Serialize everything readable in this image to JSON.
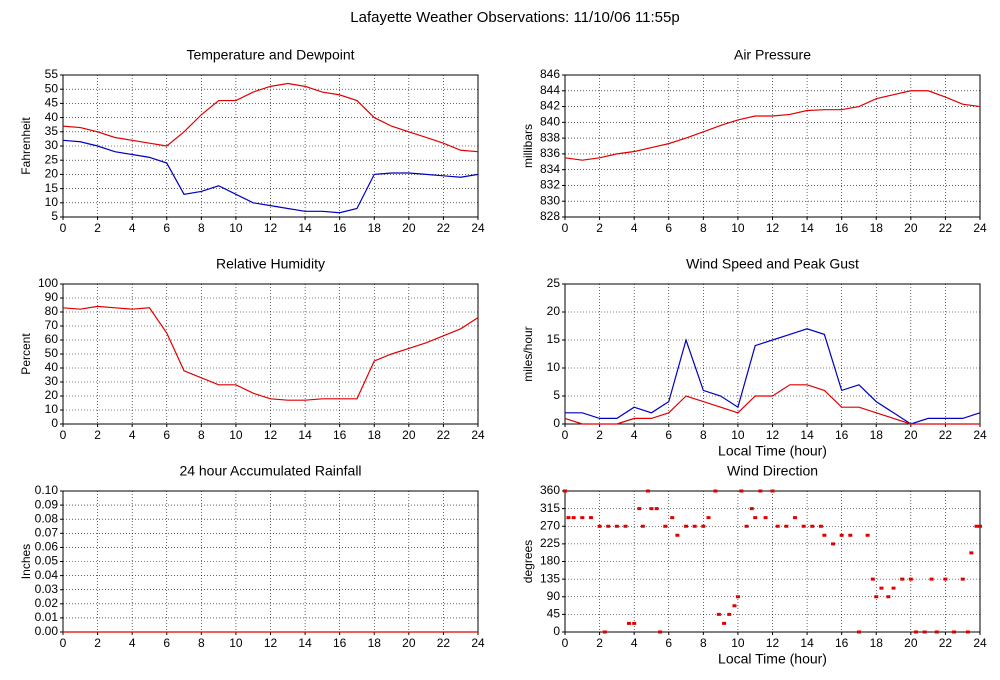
{
  "title": "Lafayette Weather Observations: 11/10/06 11:55p",
  "chart_data": [
    {
      "type": "line",
      "title": "Temperature and Dewpoint",
      "ylabel": "Fahrenheit",
      "x": [
        0,
        1,
        2,
        3,
        4,
        5,
        6,
        7,
        8,
        9,
        10,
        11,
        12,
        13,
        14,
        15,
        16,
        17,
        18,
        19,
        20,
        21,
        22,
        23,
        24
      ],
      "series": [
        {
          "color": "#e00000",
          "values": [
            37,
            36.5,
            35,
            33,
            32,
            31,
            30,
            35,
            41,
            46,
            46,
            49,
            51,
            52,
            51,
            49,
            48,
            46,
            40,
            37,
            35,
            33,
            31,
            28.5,
            28
          ]
        },
        {
          "color": "#0000c0",
          "values": [
            32,
            31.5,
            30,
            28,
            27,
            26,
            24,
            13,
            14,
            16,
            13,
            10,
            9,
            8,
            7,
            7,
            6.5,
            8,
            20,
            20.5,
            20.5,
            20,
            19.5,
            19,
            20
          ]
        }
      ],
      "xlim": [
        0,
        24
      ],
      "xticks": [
        0,
        2,
        4,
        6,
        8,
        10,
        12,
        14,
        16,
        18,
        20,
        22,
        24
      ],
      "ylim": [
        5,
        55
      ],
      "yticks": [
        5,
        10,
        15,
        20,
        25,
        30,
        35,
        40,
        45,
        50,
        55
      ],
      "grid": true
    },
    {
      "type": "line",
      "title": "Air Pressure",
      "ylabel": "millibars",
      "x": [
        0,
        1,
        2,
        3,
        4,
        5,
        6,
        7,
        8,
        9,
        10,
        11,
        12,
        13,
        14,
        15,
        16,
        17,
        18,
        19,
        20,
        21,
        22,
        23,
        24
      ],
      "series": [
        {
          "color": "#e00000",
          "values": [
            835.5,
            835.2,
            835.5,
            836,
            836.3,
            836.8,
            837.3,
            838,
            838.8,
            839.6,
            840.3,
            840.8,
            840.8,
            841,
            841.5,
            841.6,
            841.6,
            842,
            843,
            843.5,
            844,
            844,
            843.2,
            842.3,
            842
          ]
        }
      ],
      "xlim": [
        0,
        24
      ],
      "xticks": [
        0,
        2,
        4,
        6,
        8,
        10,
        12,
        14,
        16,
        18,
        20,
        22,
        24
      ],
      "ylim": [
        828,
        846
      ],
      "yticks": [
        828,
        830,
        832,
        834,
        836,
        838,
        840,
        842,
        844,
        846
      ],
      "grid": true
    },
    {
      "type": "line",
      "title": "Relative Humidity",
      "ylabel": "Percent",
      "x": [
        0,
        1,
        2,
        3,
        4,
        5,
        6,
        7,
        8,
        9,
        10,
        11,
        12,
        13,
        14,
        15,
        16,
        17,
        18,
        19,
        20,
        21,
        22,
        23,
        24
      ],
      "series": [
        {
          "color": "#e00000",
          "values": [
            83,
            82,
            84,
            83,
            82,
            83,
            65,
            38,
            33,
            28,
            28,
            22,
            18,
            17,
            17,
            18,
            18,
            18,
            45,
            50,
            54,
            58,
            63,
            68,
            76
          ]
        }
      ],
      "xlim": [
        0,
        24
      ],
      "xticks": [
        0,
        2,
        4,
        6,
        8,
        10,
        12,
        14,
        16,
        18,
        20,
        22,
        24
      ],
      "ylim": [
        0,
        100
      ],
      "yticks": [
        0,
        10,
        20,
        30,
        40,
        50,
        60,
        70,
        80,
        90,
        100
      ],
      "grid": true
    },
    {
      "type": "line",
      "title": "Wind Speed and Peak Gust",
      "ylabel": "miles/hour",
      "xlabel": "Local Time (hour)",
      "x": [
        0,
        1,
        2,
        3,
        4,
        5,
        6,
        7,
        8,
        9,
        10,
        11,
        12,
        13,
        14,
        15,
        16,
        17,
        18,
        19,
        20,
        21,
        22,
        23,
        24
      ],
      "series": [
        {
          "color": "#0000c0",
          "values": [
            2,
            2,
            1,
            1,
            3,
            2,
            4,
            15,
            6,
            5,
            3,
            14,
            15,
            16,
            17,
            16,
            6,
            7,
            4,
            2,
            0,
            1,
            1,
            1,
            2
          ]
        },
        {
          "color": "#e00000",
          "values": [
            1,
            0,
            0,
            0,
            1,
            1,
            2,
            5,
            4,
            3,
            2,
            5,
            5,
            7,
            7,
            6,
            3,
            3,
            2,
            1,
            0,
            0,
            0,
            0,
            0
          ]
        }
      ],
      "xlim": [
        0,
        24
      ],
      "xticks": [
        0,
        2,
        4,
        6,
        8,
        10,
        12,
        14,
        16,
        18,
        20,
        22,
        24
      ],
      "ylim": [
        0,
        25
      ],
      "yticks": [
        0,
        5,
        10,
        15,
        20,
        25
      ],
      "grid": true
    },
    {
      "type": "line",
      "title": "24 hour Accumulated Rainfall",
      "ylabel": "Inches",
      "x": [
        0,
        1,
        2,
        3,
        4,
        5,
        6,
        7,
        8,
        9,
        10,
        11,
        12,
        13,
        14,
        15,
        16,
        17,
        18,
        19,
        20,
        21,
        22,
        23,
        24
      ],
      "series": [
        {
          "color": "#e00000",
          "values": [
            0,
            0,
            0,
            0,
            0,
            0,
            0,
            0,
            0,
            0,
            0,
            0,
            0,
            0,
            0,
            0,
            0,
            0,
            0,
            0,
            0,
            0,
            0,
            0,
            0
          ]
        }
      ],
      "xlim": [
        0,
        24
      ],
      "xticks": [
        0,
        2,
        4,
        6,
        8,
        10,
        12,
        14,
        16,
        18,
        20,
        22,
        24
      ],
      "ylim": [
        0,
        0.1
      ],
      "yticks": [
        {
          "value": 0,
          "label": "0.00"
        },
        {
          "value": 0.01,
          "label": "0.01"
        },
        {
          "value": 0.02,
          "label": "0.02"
        },
        {
          "value": 0.03,
          "label": "0.03"
        },
        {
          "value": 0.04,
          "label": "0.04"
        },
        {
          "value": 0.05,
          "label": "0.05"
        },
        {
          "value": 0.06,
          "label": "0.06"
        },
        {
          "value": 0.07,
          "label": "0.07"
        },
        {
          "value": 0.08,
          "label": "0.08"
        },
        {
          "value": 0.09,
          "label": "0.09"
        },
        {
          "value": 0.1,
          "label": "0.10"
        }
      ],
      "grid": true
    },
    {
      "type": "scatter",
      "title": "Wind Direction",
      "ylabel": "degrees",
      "xlabel": "Local Time (hour)",
      "x": [
        0,
        0.2,
        0.5,
        1,
        1.5,
        2,
        2.5,
        3,
        3.5,
        2.3,
        3.7,
        4,
        4.3,
        4.5,
        4.8,
        5,
        5.3,
        5.5,
        5.8,
        6.2,
        6.5,
        7,
        7.5,
        8,
        8.3,
        8.7,
        8.9,
        9.2,
        9.5,
        9.8,
        10,
        10.2,
        10.5,
        10.8,
        11,
        11.3,
        11.6,
        12,
        12.3,
        12.8,
        13.3,
        13.8,
        14.3,
        14.8,
        15,
        15.5,
        16,
        16.5,
        17,
        17.5,
        17.8,
        18,
        18.3,
        18.7,
        19,
        19.5,
        20,
        20.3,
        20.8,
        21.2,
        21.5,
        22,
        22.5,
        23,
        23.3,
        23.5,
        23.8,
        24
      ],
      "series": [
        {
          "color": "#e00000",
          "values": [
            360,
            292,
            292,
            292,
            292,
            270,
            270,
            270,
            270,
            0,
            22,
            22,
            315,
            270,
            360,
            315,
            315,
            0,
            270,
            292,
            247,
            270,
            270,
            270,
            292,
            360,
            45,
            22,
            45,
            67,
            90,
            360,
            270,
            315,
            292,
            360,
            292,
            360,
            270,
            270,
            292,
            270,
            270,
            270,
            247,
            225,
            247,
            247,
            0,
            247,
            135,
            90,
            112,
            90,
            112,
            135,
            135,
            0,
            0,
            135,
            0,
            135,
            0,
            135,
            0,
            202,
            270,
            270
          ]
        }
      ],
      "xlim": [
        0,
        24
      ],
      "xticks": [
        0,
        2,
        4,
        6,
        8,
        10,
        12,
        14,
        16,
        18,
        20,
        22,
        24
      ],
      "ylim": [
        0,
        360
      ],
      "yticks": [
        0,
        45,
        90,
        135,
        180,
        225,
        270,
        315,
        360
      ],
      "grid": true
    }
  ]
}
